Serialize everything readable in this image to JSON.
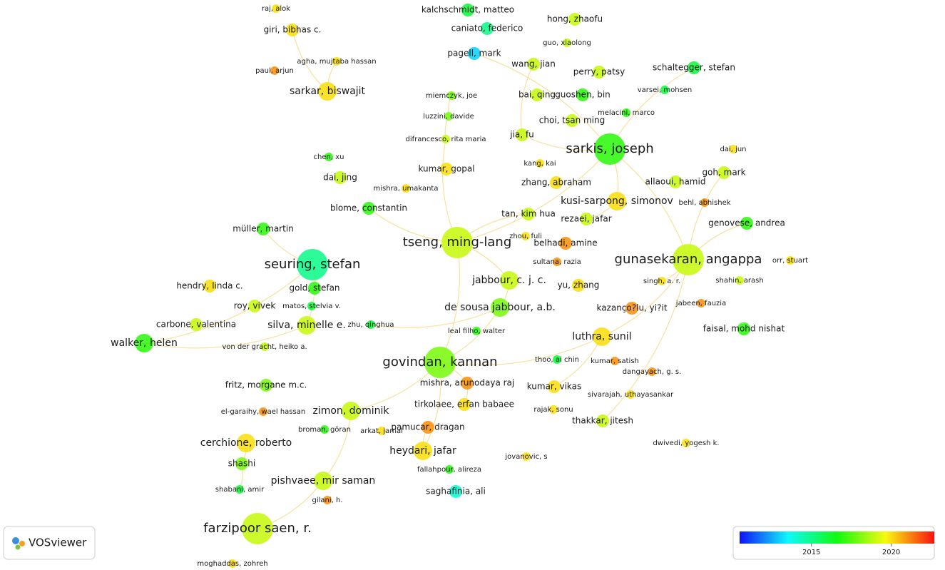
{
  "nodes": [
    {
      "label": "raj, alok",
      "year": 2020
    },
    {
      "label": "giri, bibhas c.",
      "year": 2020
    },
    {
      "label": "agha, mujtaba hassan",
      "year": 2020
    },
    {
      "label": "paul, arjun",
      "year": 2021
    },
    {
      "label": "sarkar, biswajit",
      "year": 2020
    },
    {
      "label": "kalchschmidt, matteo",
      "year": 2016
    },
    {
      "label": "caniato, federico",
      "year": 2015
    },
    {
      "label": "pagell, mark",
      "year": 2013
    },
    {
      "label": "hong, zhaofu",
      "year": 2019
    },
    {
      "label": "guo, xiaolong",
      "year": 2019
    },
    {
      "label": "wang, jian",
      "year": 2019
    },
    {
      "label": "perry, patsy",
      "year": 2019
    },
    {
      "label": "schaltegger, stefan",
      "year": 2016
    },
    {
      "label": "varsei, mohsen",
      "year": 2016
    },
    {
      "label": "bai, qing",
      "year": 2019
    },
    {
      "label": "guoshen, bin",
      "year": 2017
    },
    {
      "label": "miemczyk, joe",
      "year": 2018
    },
    {
      "label": "luzzini, davide",
      "year": 2018
    },
    {
      "label": "choi, tsan ming",
      "year": 2019
    },
    {
      "label": "melacini, marco",
      "year": 2017
    },
    {
      "label": "difrancesco, rita maria",
      "year": 2019
    },
    {
      "label": "jia, fu",
      "year": 2019
    },
    {
      "label": "sarkis, joseph",
      "year": 2017
    },
    {
      "label": "dai, jun",
      "year": 2020
    },
    {
      "label": "chen, xu",
      "year": 2017
    },
    {
      "label": "dai, jing",
      "year": 2019
    },
    {
      "label": "kumar, gopal",
      "year": 2020
    },
    {
      "label": "kang, kai",
      "year": 2020
    },
    {
      "label": "goh, mark",
      "year": 2019
    },
    {
      "label": "zhang, abraham",
      "year": 2020
    },
    {
      "label": "allaoui, hamid",
      "year": 2019
    },
    {
      "label": "mishra, umakanta",
      "year": 2020
    },
    {
      "label": "blome, constantin",
      "year": 2017
    },
    {
      "label": "kusi-sarpong, simonov",
      "year": 2020
    },
    {
      "label": "behl, abhishek",
      "year": 2021
    },
    {
      "label": "tan, kim hua",
      "year": 2019
    },
    {
      "label": "müller, martin",
      "year": 2017
    },
    {
      "label": "rezaei, jafar",
      "year": 2019
    },
    {
      "label": "genovese, andrea",
      "year": 2017
    },
    {
      "label": "zhou, fuli",
      "year": 2020
    },
    {
      "label": "tseng, ming-lang",
      "year": 2019
    },
    {
      "label": "belhadi, amine",
      "year": 2021
    },
    {
      "label": "sultana, razia",
      "year": 2021
    },
    {
      "label": "seuring, stefan",
      "year": 2015
    },
    {
      "label": "gunasekaran, angappa",
      "year": 2019
    },
    {
      "label": "orr, stuart",
      "year": 2020
    },
    {
      "label": "jabbour, c. j. c.",
      "year": 2019
    },
    {
      "label": "singh, a. r.",
      "year": 2020
    },
    {
      "label": "shahin, arash",
      "year": 2019
    },
    {
      "label": "hendry, linda c.",
      "year": 2020
    },
    {
      "label": "gold, stefan",
      "year": 2017
    },
    {
      "label": "yu, zhang",
      "year": 2020
    },
    {
      "label": "roy, vivek",
      "year": 2019
    },
    {
      "label": "matos, stelvia v.",
      "year": 2016
    },
    {
      "label": "de sousa jabbour, a.b.",
      "year": 2018
    },
    {
      "label": "kazanço?lu, yi?it",
      "year": 2021
    },
    {
      "label": "jabeen, fauzia",
      "year": 2021
    },
    {
      "label": "carbone, valentina",
      "year": 2019
    },
    {
      "label": "silva, minelle e.",
      "year": 2019
    },
    {
      "label": "zhu, qinghua",
      "year": 2016
    },
    {
      "label": "leal filho, walter",
      "year": 2017
    },
    {
      "label": "faisal, mohd nishat",
      "year": 2017
    },
    {
      "label": "walker, helen",
      "year": 2017
    },
    {
      "label": "von der gracht, heiko a.",
      "year": 2019
    },
    {
      "label": "luthra, sunil",
      "year": 2020
    },
    {
      "label": "thoo, ai chin",
      "year": 2016
    },
    {
      "label": "kumar, satish",
      "year": 2021
    },
    {
      "label": "govindan, kannan",
      "year": 2018
    },
    {
      "label": "dangayach, g. s.",
      "year": 2021
    },
    {
      "label": "fritz, morgane m.c.",
      "year": 2018
    },
    {
      "label": "mishra, arunodaya raj",
      "year": 2021
    },
    {
      "label": "kumar, vikas",
      "year": 2020
    },
    {
      "label": "sivarajah, uthayasankar",
      "year": 2020
    },
    {
      "label": "el-garaihy, wael hassan",
      "year": 2021
    },
    {
      "label": "zimon, dominik",
      "year": 2019
    },
    {
      "label": "tirkolaee, erfan babaee",
      "year": 2020
    },
    {
      "label": "rajak, sonu",
      "year": 2020
    },
    {
      "label": "thakkar, jitesh",
      "year": 2019
    },
    {
      "label": "broman, göran",
      "year": 2017
    },
    {
      "label": "arkat, jamal",
      "year": 2020
    },
    {
      "label": "pamucar, dragan",
      "year": 2021
    },
    {
      "label": "dwivedi, yogesh k.",
      "year": 2020
    },
    {
      "label": "cerchione, roberto",
      "year": 2020
    },
    {
      "label": "heydari, jafar",
      "year": 2020
    },
    {
      "label": "jovanovic, s",
      "year": 2020
    },
    {
      "label": "shashi",
      "year": 2018
    },
    {
      "label": "fallahpour, alireza",
      "year": 2017
    },
    {
      "label": "pishvaee, mir saman",
      "year": 2019
    },
    {
      "label": "gilani, h.",
      "year": 2021
    },
    {
      "label": "shabani, amir",
      "year": 2016
    },
    {
      "label": "saghafinia, ali",
      "year": 2014
    },
    {
      "label": "farzipoor saen, r.",
      "year": 2019
    },
    {
      "label": "moghaddas, zohreh",
      "year": 2020
    }
  ],
  "color_scale": {
    "range": [
      2010.5,
      2022.7
    ],
    "ticks": [
      2015,
      2020
    ]
  },
  "logo": "VOSviewer"
}
